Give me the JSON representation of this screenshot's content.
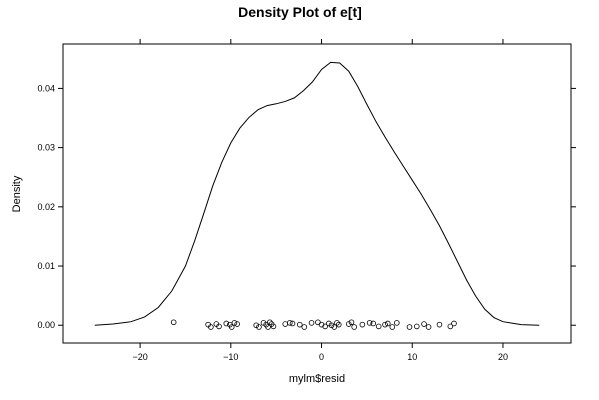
{
  "chart_data": {
    "type": "line",
    "title": "Density Plot of e[t]",
    "xlabel": "mylm$resid",
    "ylabel": "Density",
    "xlim": [
      -28.5,
      27.5
    ],
    "ylim": [
      -0.003,
      0.0475
    ],
    "x_ticks": [
      -20,
      -10,
      0,
      10,
      20
    ],
    "y_ticks": [
      0.0,
      0.01,
      0.02,
      0.03,
      0.04
    ],
    "y_tick_labels": [
      "0.00",
      "0.01",
      "0.02",
      "0.03",
      "0.04"
    ],
    "x_tick_labels": [
      "−20",
      "−10",
      "0",
      "10",
      "20"
    ],
    "grid": false,
    "series": [
      {
        "x": [
          -25.0,
          -23.0,
          -21.0,
          -19.5,
          -18.0,
          -16.5,
          -15.0,
          -14.0,
          -13.0,
          -12.0,
          -11.0,
          -10.0,
          -9.0,
          -8.0,
          -7.0,
          -6.0,
          -5.0,
          -4.0,
          -3.0,
          -2.0,
          -1.0,
          0.0,
          1.0,
          2.0,
          3.0,
          4.0,
          5.0,
          6.0,
          7.0,
          8.0,
          9.0,
          10.0,
          11.0,
          12.0,
          13.0,
          14.0,
          15.0,
          16.0,
          17.0,
          18.0,
          19.0,
          20.0,
          22.0,
          24.0
        ],
        "y": [
          0.0,
          0.0002,
          0.0006,
          0.0014,
          0.003,
          0.0058,
          0.01,
          0.0142,
          0.0188,
          0.0235,
          0.0275,
          0.0308,
          0.0333,
          0.0351,
          0.0364,
          0.0371,
          0.0374,
          0.0378,
          0.0384,
          0.0396,
          0.0411,
          0.0432,
          0.0444,
          0.0443,
          0.0429,
          0.0403,
          0.0373,
          0.0344,
          0.0318,
          0.0293,
          0.0269,
          0.0245,
          0.0221,
          0.0195,
          0.0168,
          0.0138,
          0.0107,
          0.0076,
          0.0049,
          0.0027,
          0.0013,
          0.0006,
          0.0001,
          0.0
        ]
      }
    ],
    "rug": {
      "x": [
        -16.3,
        -12.5,
        -12.2,
        -11.6,
        -11.3,
        -10.5,
        -10.1,
        -9.9,
        -9.6,
        -9.3,
        -7.2,
        -6.9,
        -6.4,
        -6.1,
        -5.9,
        -5.7,
        -5.5,
        -5.3,
        -4.0,
        -3.5,
        -3.2,
        -2.4,
        -1.9,
        -1.1,
        -0.4,
        0.0,
        0.4,
        0.8,
        1.1,
        1.4,
        1.7,
        1.9,
        3.0,
        3.3,
        3.6,
        4.5,
        5.3,
        5.7,
        6.3,
        7.0,
        7.3,
        7.8,
        8.3,
        9.7,
        10.5,
        11.3,
        11.8,
        13.0,
        14.2,
        14.6
      ],
      "y": [
        0.0005,
        0.0001,
        -0.0003,
        0.0002,
        -0.0002,
        0.0003,
        0.0001,
        -0.0003,
        0.0004,
        0.0002,
        0.0,
        -0.0003,
        0.0004,
        0.0001,
        -0.0003,
        0.0005,
        0.0002,
        -0.0002,
        0.0002,
        0.0004,
        0.0003,
        0.0001,
        -0.0003,
        0.0004,
        0.0005,
        0.0001,
        -0.0002,
        0.0003,
        0.0,
        -0.0003,
        0.0004,
        0.0001,
        0.0002,
        0.0005,
        -0.0003,
        0.0001,
        0.0004,
        0.0003,
        -0.0002,
        0.0001,
        0.0003,
        -0.0003,
        0.0004,
        -0.0003,
        -0.0002,
        0.0002,
        -0.0003,
        0.0001,
        -0.0002,
        0.0003
      ]
    }
  }
}
